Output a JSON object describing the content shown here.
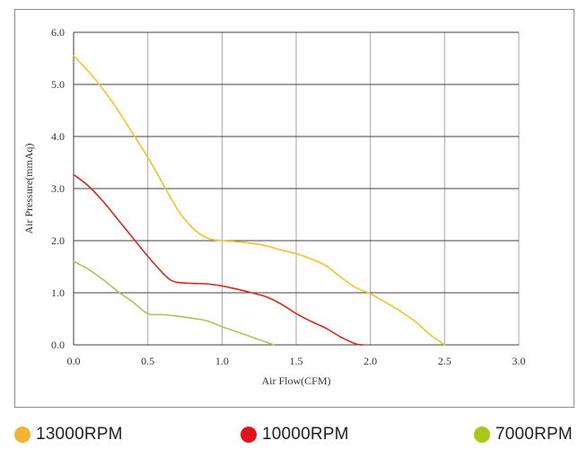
{
  "chart_data": {
    "type": "line",
    "title": "",
    "xlabel": "Air Flow(CFM)",
    "ylabel": "Air Pressure(mmAq)",
    "xlim": [
      0,
      3.0
    ],
    "ylim": [
      0,
      6.0
    ],
    "xticks": [
      "0.0",
      "0.5",
      "1.0",
      "1.5",
      "2.0",
      "2.5",
      "3.0"
    ],
    "yticks": [
      "0.0",
      "1.0",
      "2.0",
      "3.0",
      "4.0",
      "5.0",
      "6.0"
    ],
    "grid": true,
    "legend_position": "bottom",
    "series": [
      {
        "name": "13000RPM",
        "color": "#f5b335",
        "line_color": "#f2c230",
        "x": [
          0.0,
          0.1,
          0.2,
          0.3,
          0.4,
          0.5,
          0.6,
          0.7,
          0.8,
          0.9,
          1.0,
          1.1,
          1.2,
          1.3,
          1.4,
          1.5,
          1.6,
          1.7,
          1.8,
          1.9,
          2.0,
          2.1,
          2.2,
          2.3,
          2.4,
          2.5
        ],
        "y": [
          5.55,
          5.25,
          4.9,
          4.5,
          4.05,
          3.6,
          3.1,
          2.6,
          2.25,
          2.05,
          2.0,
          1.98,
          1.95,
          1.9,
          1.82,
          1.75,
          1.65,
          1.52,
          1.3,
          1.1,
          0.98,
          0.82,
          0.65,
          0.45,
          0.2,
          0.0
        ]
      },
      {
        "name": "10000RPM",
        "color": "#e0141c",
        "line_color": "#d42a1e",
        "x": [
          0.0,
          0.1,
          0.2,
          0.3,
          0.4,
          0.5,
          0.6,
          0.65,
          0.7,
          0.8,
          0.9,
          1.0,
          1.1,
          1.2,
          1.3,
          1.4,
          1.5,
          1.6,
          1.7,
          1.8,
          1.9,
          1.95
        ],
        "y": [
          3.27,
          3.05,
          2.75,
          2.4,
          2.05,
          1.7,
          1.38,
          1.25,
          1.2,
          1.18,
          1.17,
          1.13,
          1.07,
          1.0,
          0.92,
          0.78,
          0.6,
          0.45,
          0.32,
          0.15,
          0.02,
          0.0
        ]
      },
      {
        "name": "7000RPM",
        "color": "#a6c81a",
        "line_color": "#a8c65a",
        "x": [
          0.0,
          0.1,
          0.2,
          0.3,
          0.4,
          0.5,
          0.6,
          0.7,
          0.8,
          0.9,
          1.0,
          1.1,
          1.2,
          1.3,
          1.35
        ],
        "y": [
          1.6,
          1.45,
          1.25,
          1.02,
          0.82,
          0.6,
          0.58,
          0.55,
          0.51,
          0.46,
          0.35,
          0.25,
          0.15,
          0.05,
          0.0
        ]
      }
    ]
  }
}
